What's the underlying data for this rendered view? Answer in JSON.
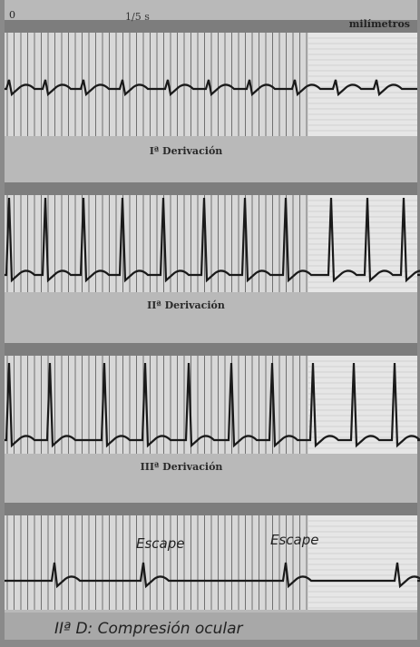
{
  "top": {
    "origin": "0",
    "time_scale": "1/5 s",
    "scale_label": "milímetros"
  },
  "leads": [
    {
      "label": "Iª Derivación"
    },
    {
      "label": "IIª Derivación"
    },
    {
      "label": "IIIª Derivación"
    },
    {
      "label": "IIª D: Compresión ocular"
    }
  ],
  "annotations": [
    "Escape",
    "Escape"
  ]
}
